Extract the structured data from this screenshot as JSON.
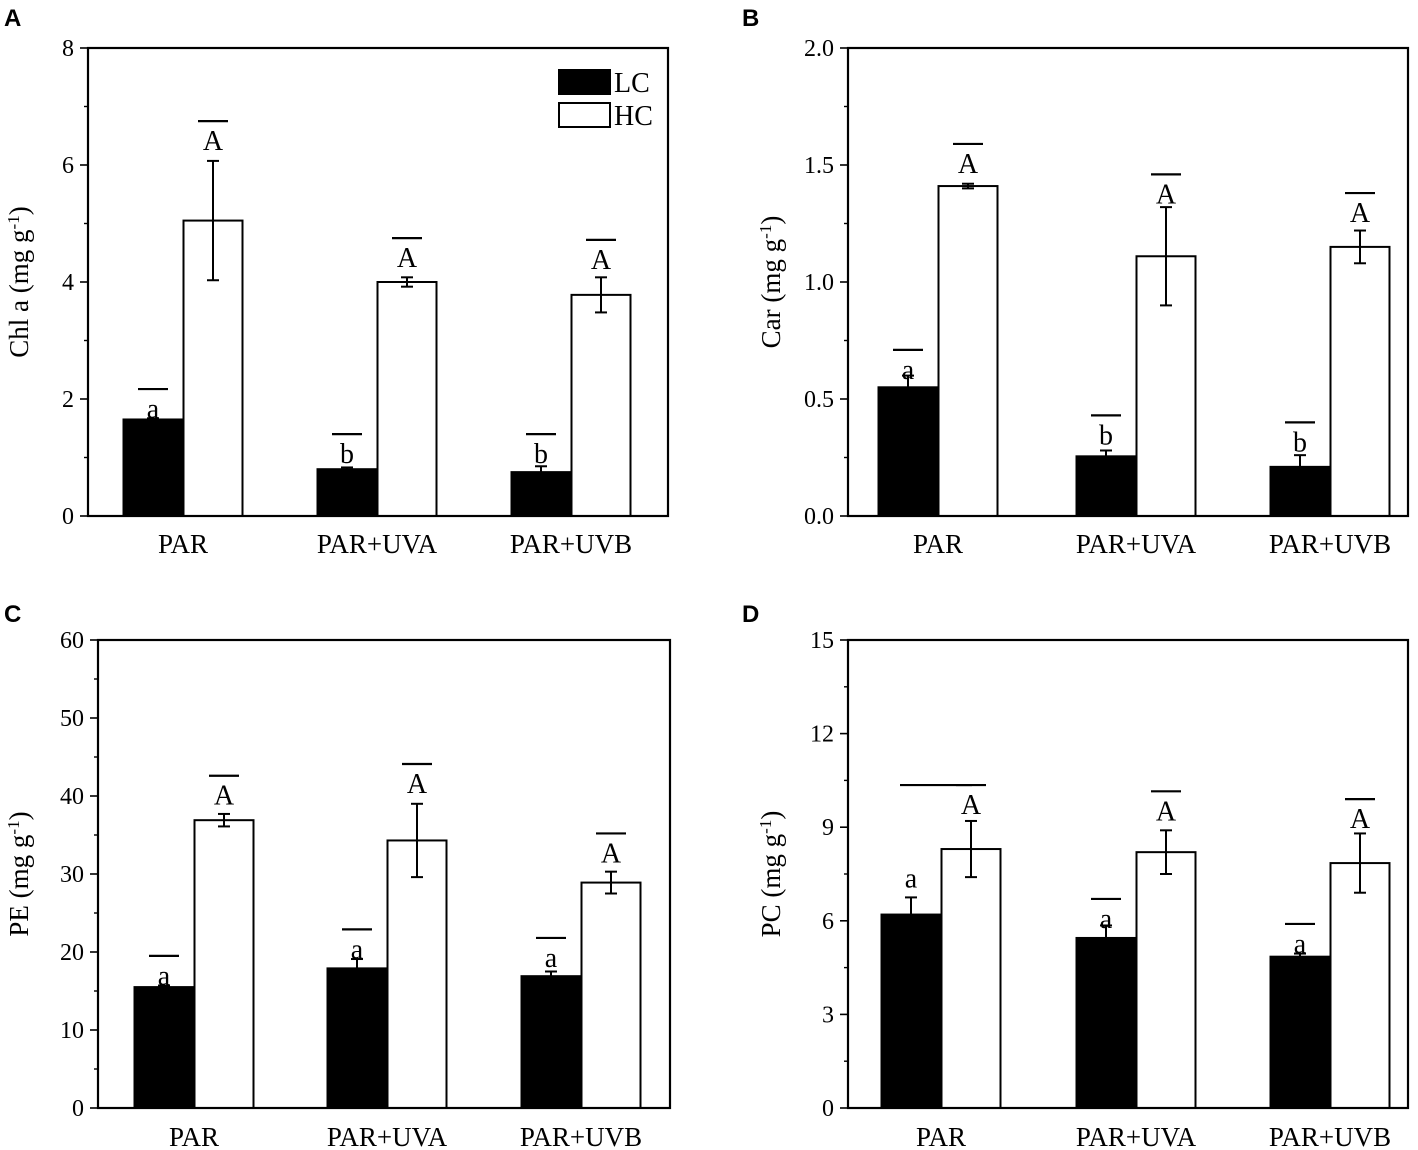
{
  "figure": {
    "series_names": [
      "LC",
      "HC"
    ],
    "series_colors": {
      "LC": "#000000",
      "HC": "#ffffff"
    },
    "edge_color": "#000000"
  },
  "chart_data": [
    {
      "panel_label": "A",
      "type": "bar",
      "ylabel_main": "Chl a (mg g",
      "ylabel_sup": "-1",
      "ylabel_close": ")",
      "categories": [
        "PAR",
        "PAR+UVA",
        "PAR+UVB"
      ],
      "ylim": [
        0,
        8
      ],
      "yticks": [
        0,
        2,
        4,
        6,
        8
      ],
      "ytick_labels": [
        "0",
        "2",
        "4",
        "6",
        "8"
      ],
      "legend": {
        "entries": [
          "LC",
          "HC"
        ],
        "position": "top-right"
      },
      "series": [
        {
          "name": "LC",
          "values": [
            1.65,
            0.8,
            0.75
          ],
          "errors": [
            0.02,
            0.03,
            0.1
          ]
        },
        {
          "name": "HC",
          "values": [
            5.05,
            4.0,
            3.78
          ],
          "errors": [
            1.02,
            0.08,
            0.3
          ]
        }
      ],
      "annotations": [
        {
          "series": "LC",
          "labels": [
            "a",
            "b",
            "b"
          ],
          "bar_tops": [
            2.17,
            1.4,
            1.4
          ]
        },
        {
          "series": "HC",
          "labels": [
            "A",
            "A",
            "A"
          ],
          "bar_tops": [
            6.75,
            4.75,
            4.72
          ]
        }
      ]
    },
    {
      "panel_label": "B",
      "type": "bar",
      "ylabel_main": "Car (mg g",
      "ylabel_sup": "-1",
      "ylabel_close": ")",
      "categories": [
        "PAR",
        "PAR+UVA",
        "PAR+UVB"
      ],
      "ylim": [
        0,
        2.0
      ],
      "yticks": [
        0,
        0.5,
        1.0,
        1.5,
        2.0
      ],
      "ytick_labels": [
        "0.0",
        "0.5",
        "1.0",
        "1.5",
        "2.0"
      ],
      "series": [
        {
          "name": "LC",
          "values": [
            0.55,
            0.255,
            0.21
          ],
          "errors": [
            0.05,
            0.025,
            0.05
          ]
        },
        {
          "name": "HC",
          "values": [
            1.41,
            1.11,
            1.15
          ],
          "errors": [
            0.01,
            0.21,
            0.07
          ]
        }
      ],
      "annotations": [
        {
          "series": "LC",
          "labels": [
            "a",
            "b",
            "b"
          ],
          "bar_tops": [
            0.71,
            0.43,
            0.4
          ]
        },
        {
          "series": "HC",
          "labels": [
            "A",
            "A",
            "A"
          ],
          "bar_tops": [
            1.59,
            1.46,
            1.38
          ]
        }
      ]
    },
    {
      "panel_label": "C",
      "type": "bar",
      "ylabel_main": "PE (mg g",
      "ylabel_sup": "-1",
      "ylabel_close": ")",
      "categories": [
        "PAR",
        "PAR+UVA",
        "PAR+UVB"
      ],
      "ylim": [
        0,
        60
      ],
      "yticks": [
        0,
        10,
        20,
        30,
        40,
        50,
        60
      ],
      "ytick_labels": [
        "0",
        "10",
        "20",
        "30",
        "40",
        "50",
        "60"
      ],
      "series": [
        {
          "name": "LC",
          "values": [
            15.5,
            17.9,
            16.9
          ],
          "errors": [
            0.2,
            1.2,
            0.6
          ]
        },
        {
          "name": "HC",
          "values": [
            36.9,
            34.3,
            28.9
          ],
          "errors": [
            0.8,
            4.7,
            1.4
          ]
        }
      ],
      "annotations": [
        {
          "series": "LC",
          "labels": [
            "a",
            "a",
            "a"
          ],
          "bar_tops": [
            19.5,
            22.9,
            21.8
          ]
        },
        {
          "series": "HC",
          "labels": [
            "A",
            "A",
            "A"
          ],
          "bar_tops": [
            42.6,
            44.1,
            35.2
          ]
        }
      ]
    },
    {
      "panel_label": "D",
      "type": "bar",
      "ylabel_main": "PC (mg g",
      "ylabel_sup": "-1",
      "ylabel_close": ")",
      "categories": [
        "PAR",
        "PAR+UVA",
        "PAR+UVB"
      ],
      "ylim": [
        0,
        15
      ],
      "yticks": [
        0,
        3,
        6,
        9,
        12,
        15
      ],
      "ytick_labels": [
        "0",
        "3",
        "6",
        "9",
        "12",
        "15"
      ],
      "series": [
        {
          "name": "LC",
          "values": [
            6.2,
            5.45,
            4.85
          ],
          "errors": [
            0.55,
            0.4,
            0.1
          ]
        },
        {
          "name": "HC",
          "values": [
            8.3,
            8.2,
            7.85
          ],
          "errors": [
            0.9,
            0.7,
            0.95
          ]
        }
      ],
      "annotations": [
        {
          "series": "LC",
          "labels": [
            "a",
            "a",
            "a"
          ],
          "bar_tops": [
            null,
            6.7,
            5.9
          ]
        },
        {
          "series": "HC",
          "labels": [
            "A",
            "A",
            "A"
          ],
          "bar_tops": [
            10.35,
            10.15,
            9.9
          ]
        }
      ]
    }
  ]
}
